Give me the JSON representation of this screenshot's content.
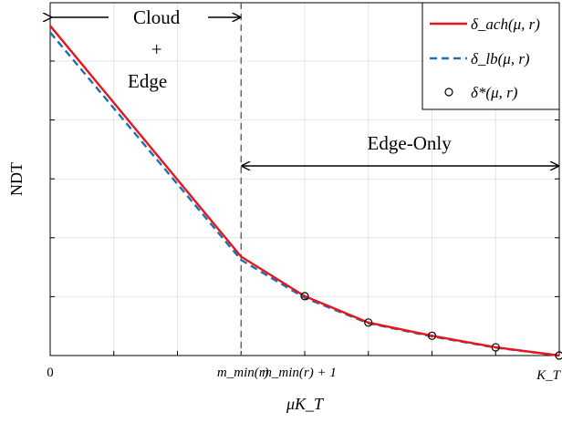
{
  "chart_data": {
    "type": "line",
    "xlabel": "μK_T",
    "ylabel": "NDT",
    "x_ticks": [
      "0",
      "m_min(r)",
      "m_min(r) + 1",
      "K_T"
    ],
    "grid": true,
    "legend_position": "top-right",
    "series": [
      {
        "name": "δ_ach(μ, r)",
        "style": "solid",
        "color": "#e8161b",
        "x": [
          0,
          3,
          4,
          5,
          6,
          7,
          8
        ],
        "y": [
          1.0,
          0.3,
          0.18,
          0.1,
          0.06,
          0.025,
          0.0
        ]
      },
      {
        "name": "δ_lb(μ, r)",
        "style": "dashed",
        "color": "#1f6fb5",
        "x": [
          0,
          3,
          4,
          5,
          6,
          7,
          8
        ],
        "y": [
          0.98,
          0.29,
          0.175,
          0.098,
          0.058,
          0.024,
          0.0
        ]
      },
      {
        "name": "δ*(μ, r)",
        "style": "markers",
        "color": "#000000",
        "x": [
          4,
          5,
          6,
          7,
          8
        ],
        "y": [
          0.18,
          0.1,
          0.06,
          0.025,
          0.0
        ]
      }
    ],
    "regions": [
      {
        "label_lines": [
          "Cloud",
          "+",
          "Edge"
        ],
        "x_start": 0,
        "x_end": 3
      },
      {
        "label": "Edge-Only",
        "x_start": 3,
        "x_end": 8
      }
    ],
    "divider_x": 3,
    "xlim": [
      0,
      8
    ],
    "ylim": [
      -0.0,
      1.07
    ]
  }
}
